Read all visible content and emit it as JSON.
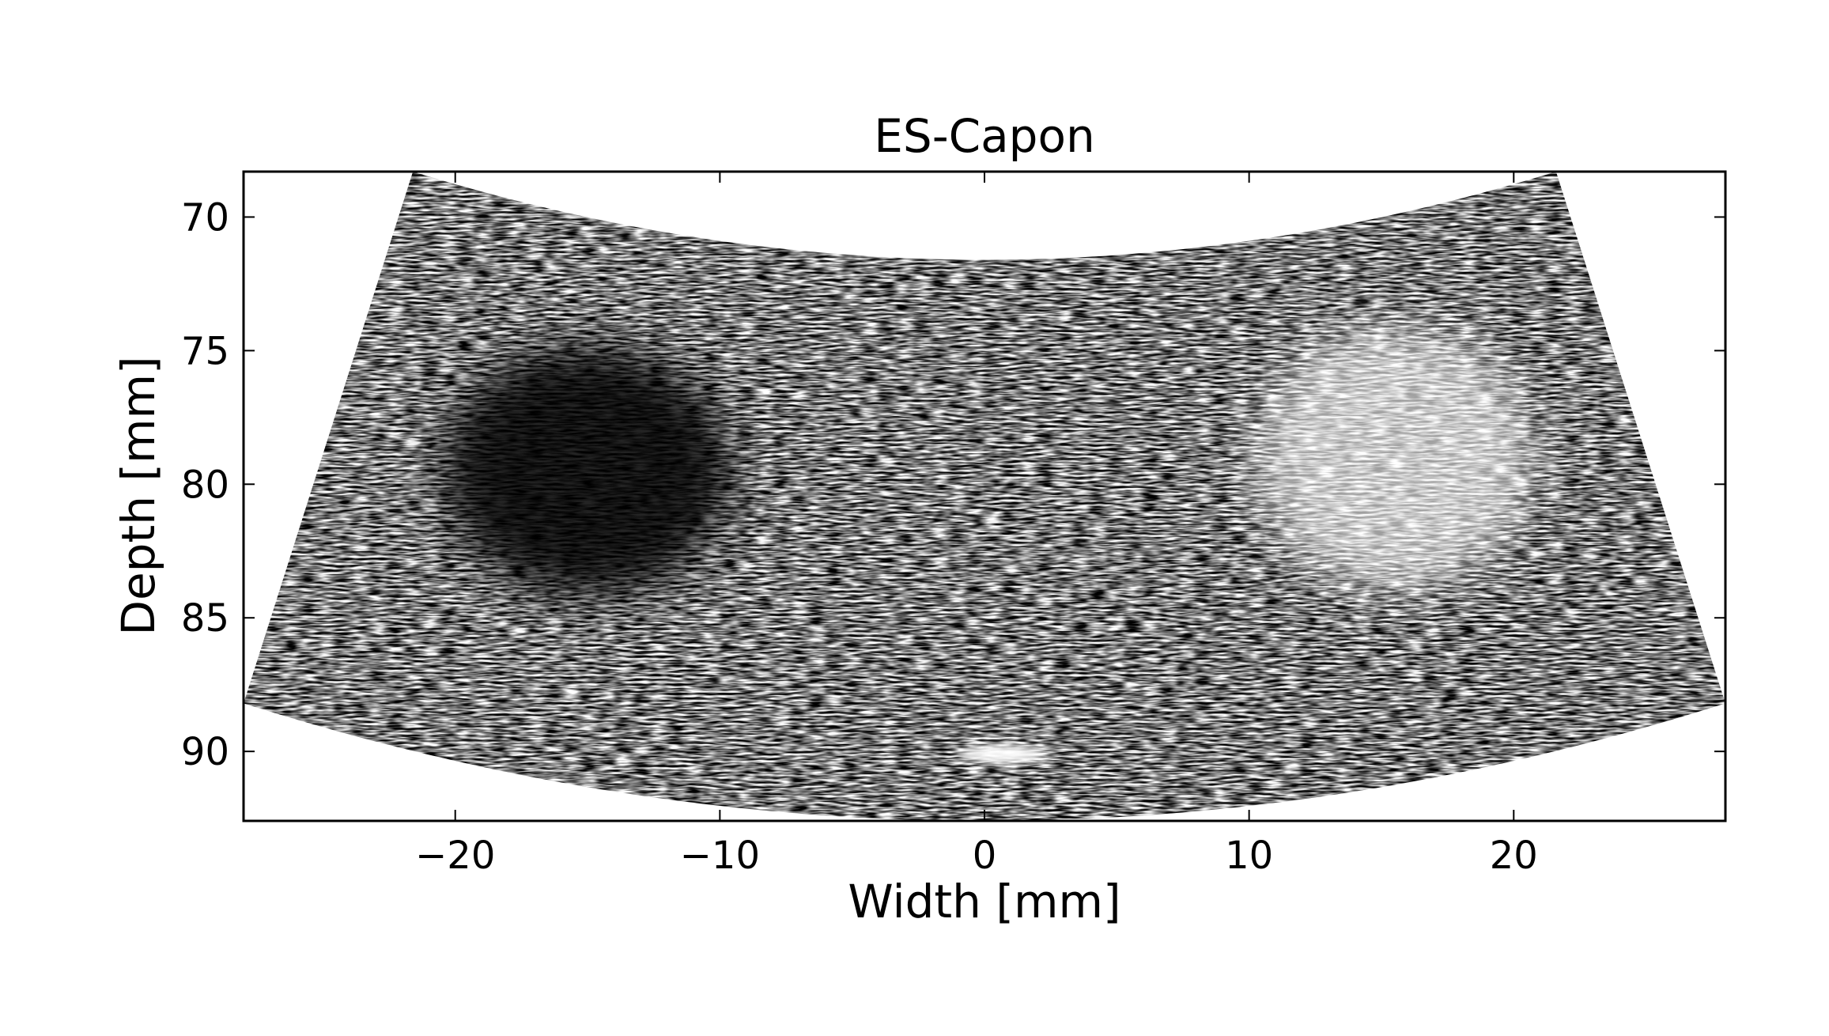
{
  "chart_data": {
    "type": "heatmap",
    "title": "ES-Capon",
    "xlabel": "Width [mm]",
    "ylabel": "Depth [mm]",
    "xlim": [
      -28,
      28
    ],
    "ylim": [
      92.6,
      68.3
    ],
    "y_inverted": true,
    "grid": false,
    "colormap": "grayscale",
    "x_ticks": [
      {
        "value": -20,
        "label": "−20"
      },
      {
        "value": -10,
        "label": "−10"
      },
      {
        "value": 0,
        "label": "0"
      },
      {
        "value": 10,
        "label": "10"
      },
      {
        "value": 20,
        "label": "20"
      }
    ],
    "y_ticks": [
      {
        "value": 70,
        "label": "70"
      },
      {
        "value": 75,
        "label": "75"
      },
      {
        "value": 80,
        "label": "80"
      },
      {
        "value": 85,
        "label": "85"
      },
      {
        "value": 90,
        "label": "90"
      }
    ],
    "sector": {
      "top_corners": [
        [
          -21.6,
          68.3
        ],
        [
          21.6,
          68.3
        ]
      ],
      "bottom_corners": [
        [
          -28,
          88.2
        ],
        [
          28,
          88.2
        ]
      ],
      "top_center_depth": 71.6,
      "bottom_center_depth": 92.6
    },
    "regions": [
      {
        "kind": "hypoechoic cyst",
        "center": [
          -15,
          79.5
        ],
        "radius_mm": 5.2
      },
      {
        "kind": "hyperechoic region",
        "center": [
          15.5,
          79
        ],
        "radius_mm": 5.3
      },
      {
        "kind": "bright point target",
        "center": [
          0.7,
          90.1
        ]
      }
    ]
  }
}
